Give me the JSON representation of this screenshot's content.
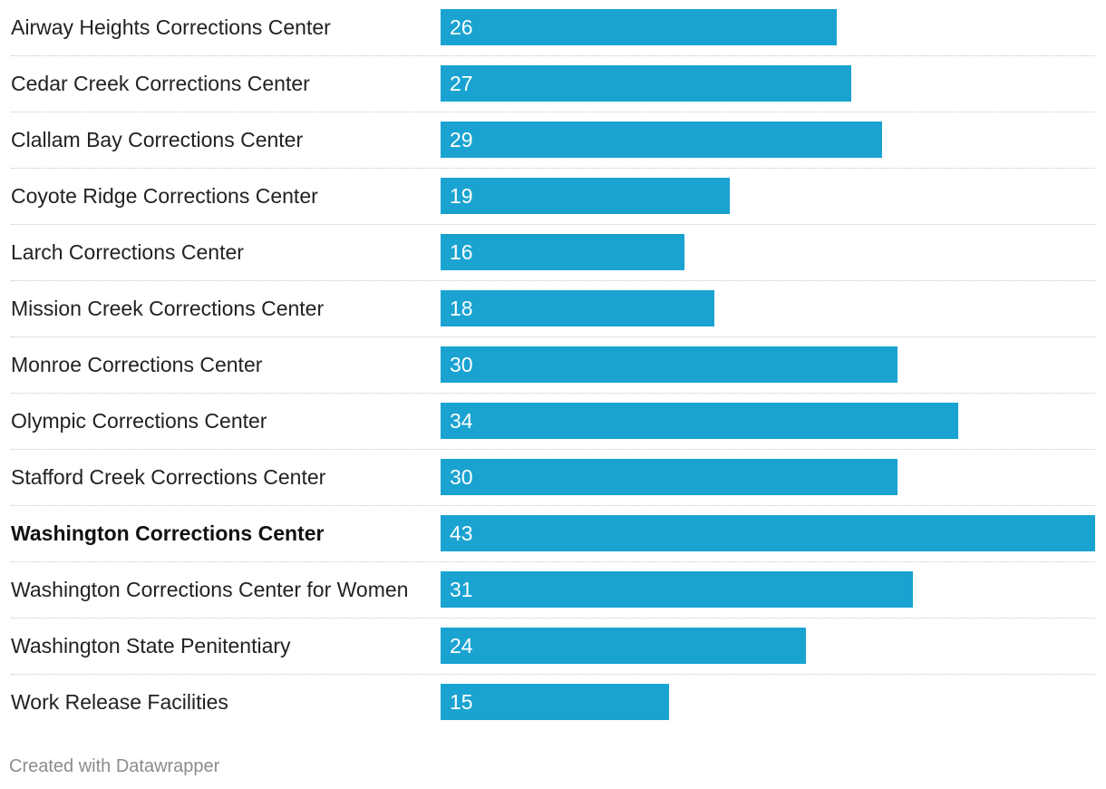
{
  "chart_data": {
    "type": "bar",
    "orientation": "horizontal",
    "categories": [
      "Airway Heights Corrections Center",
      "Cedar Creek Corrections Center",
      "Clallam Bay Corrections Center",
      "Coyote Ridge Corrections Center",
      "Larch Corrections Center",
      "Mission Creek Corrections Center",
      "Monroe Corrections Center",
      "Olympic Corrections Center",
      "Stafford Creek Corrections Center",
      "Washington Corrections Center",
      "Washington Corrections Center for Women",
      "Washington State Penitentiary",
      "Work Release Facilities"
    ],
    "values": [
      26,
      27,
      29,
      19,
      16,
      18,
      30,
      34,
      30,
      43,
      31,
      24,
      15
    ],
    "labels": [
      "26",
      "27",
      "29",
      "19",
      "16",
      "18",
      "30",
      "34",
      "30",
      "43",
      "31",
      "24",
      "15"
    ],
    "highlighted_category": "Washington Corrections Center",
    "bar_color": "#1aa3d1",
    "xlim": [
      0,
      43
    ],
    "title": "",
    "xlabel": "",
    "ylabel": ""
  },
  "credit": "Created with Datawrapper"
}
